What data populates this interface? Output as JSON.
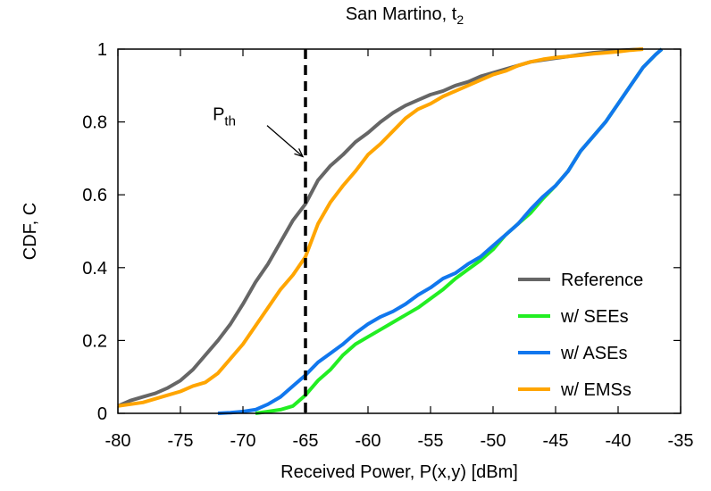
{
  "chart_data": {
    "type": "line",
    "title": "San Martino, t",
    "title_subscript": "2",
    "xlabel": "Received Power, P(x,y) [dBm]",
    "ylabel": "CDF, C",
    "xlim": [
      -80,
      -35
    ],
    "ylim": [
      0,
      1
    ],
    "x_ticks": [
      "-80",
      "-75",
      "-70",
      "-65",
      "-60",
      "-55",
      "-50",
      "-45",
      "-40",
      "-35"
    ],
    "y_ticks": [
      "0",
      "0.2",
      "0.4",
      "0.6",
      "0.8",
      "1"
    ],
    "grid": false,
    "legend_position": "bottom-right",
    "threshold": {
      "label": "P",
      "label_subscript": "th",
      "x": -65,
      "color": "#000000",
      "arrow_from": {
        "x": -68.5,
        "y": 0.8
      },
      "label_at": {
        "x": -71.5,
        "y": 0.8
      }
    },
    "series": [
      {
        "name": "Reference",
        "color": "#666666",
        "points": [
          [
            -80,
            0.02
          ],
          [
            -79,
            0.035
          ],
          [
            -78,
            0.045
          ],
          [
            -77,
            0.055
          ],
          [
            -76,
            0.07
          ],
          [
            -75,
            0.09
          ],
          [
            -74,
            0.12
          ],
          [
            -73,
            0.16
          ],
          [
            -72,
            0.2
          ],
          [
            -71,
            0.245
          ],
          [
            -70,
            0.3
          ],
          [
            -69,
            0.36
          ],
          [
            -68,
            0.41
          ],
          [
            -67,
            0.47
          ],
          [
            -66,
            0.53
          ],
          [
            -65,
            0.575
          ],
          [
            -64,
            0.64
          ],
          [
            -63,
            0.68
          ],
          [
            -62,
            0.71
          ],
          [
            -61,
            0.745
          ],
          [
            -60,
            0.77
          ],
          [
            -59,
            0.8
          ],
          [
            -58,
            0.825
          ],
          [
            -57,
            0.845
          ],
          [
            -56,
            0.86
          ],
          [
            -55,
            0.875
          ],
          [
            -54,
            0.885
          ],
          [
            -53,
            0.9
          ],
          [
            -52,
            0.91
          ],
          [
            -51,
            0.925
          ],
          [
            -50,
            0.935
          ],
          [
            -49,
            0.945
          ],
          [
            -48,
            0.955
          ],
          [
            -47,
            0.965
          ],
          [
            -46,
            0.97
          ],
          [
            -45,
            0.975
          ],
          [
            -44,
            0.98
          ],
          [
            -43,
            0.985
          ],
          [
            -42,
            0.99
          ],
          [
            -41,
            0.993
          ],
          [
            -40,
            0.996
          ],
          [
            -39,
            0.998
          ],
          [
            -38,
            1.0
          ]
        ]
      },
      {
        "name": "w/ SEEs",
        "color": "#22ee22",
        "points": [
          [
            -69,
            0.0
          ],
          [
            -68,
            0.005
          ],
          [
            -67,
            0.01
          ],
          [
            -66,
            0.02
          ],
          [
            -65.5,
            0.035
          ],
          [
            -65,
            0.05
          ],
          [
            -64.5,
            0.07
          ],
          [
            -64,
            0.09
          ],
          [
            -63,
            0.12
          ],
          [
            -62,
            0.16
          ],
          [
            -61,
            0.19
          ],
          [
            -60,
            0.21
          ],
          [
            -59,
            0.23
          ],
          [
            -58,
            0.25
          ],
          [
            -57,
            0.27
          ],
          [
            -56,
            0.29
          ],
          [
            -55,
            0.315
          ],
          [
            -54,
            0.34
          ],
          [
            -53,
            0.37
          ],
          [
            -52,
            0.395
          ],
          [
            -51,
            0.42
          ],
          [
            -50,
            0.45
          ],
          [
            -49,
            0.49
          ],
          [
            -48,
            0.52
          ],
          [
            -47,
            0.55
          ],
          [
            -46,
            0.59
          ],
          [
            -45,
            0.625
          ],
          [
            -44,
            0.665
          ],
          [
            -43,
            0.72
          ],
          [
            -42,
            0.76
          ],
          [
            -41,
            0.8
          ],
          [
            -40,
            0.85
          ],
          [
            -39,
            0.9
          ],
          [
            -38,
            0.95
          ],
          [
            -37,
            0.985
          ],
          [
            -36.5,
            1.0
          ]
        ]
      },
      {
        "name": "w/ ASEs",
        "color": "#1177ee",
        "points": [
          [
            -72,
            0.0
          ],
          [
            -71,
            0.002
          ],
          [
            -70,
            0.005
          ],
          [
            -69,
            0.01
          ],
          [
            -68,
            0.025
          ],
          [
            -67,
            0.045
          ],
          [
            -66,
            0.075
          ],
          [
            -65,
            0.105
          ],
          [
            -64,
            0.14
          ],
          [
            -63,
            0.165
          ],
          [
            -62,
            0.19
          ],
          [
            -61,
            0.22
          ],
          [
            -60,
            0.245
          ],
          [
            -59,
            0.265
          ],
          [
            -58,
            0.28
          ],
          [
            -57,
            0.3
          ],
          [
            -56,
            0.325
          ],
          [
            -55,
            0.345
          ],
          [
            -54,
            0.37
          ],
          [
            -53,
            0.385
          ],
          [
            -52,
            0.41
          ],
          [
            -51,
            0.43
          ],
          [
            -50,
            0.46
          ],
          [
            -49,
            0.49
          ],
          [
            -48,
            0.52
          ],
          [
            -47,
            0.56
          ],
          [
            -46,
            0.595
          ],
          [
            -45,
            0.625
          ],
          [
            -44,
            0.665
          ],
          [
            -43,
            0.72
          ],
          [
            -42,
            0.76
          ],
          [
            -41,
            0.8
          ],
          [
            -40,
            0.85
          ],
          [
            -39,
            0.9
          ],
          [
            -38,
            0.95
          ],
          [
            -37,
            0.985
          ],
          [
            -36.5,
            1.0
          ]
        ]
      },
      {
        "name": "w/ EMSs",
        "color": "#ffa500",
        "points": [
          [
            -80,
            0.02
          ],
          [
            -79,
            0.025
          ],
          [
            -78,
            0.03
          ],
          [
            -77,
            0.04
          ],
          [
            -76,
            0.05
          ],
          [
            -75,
            0.06
          ],
          [
            -74,
            0.075
          ],
          [
            -73,
            0.085
          ],
          [
            -72,
            0.11
          ],
          [
            -71,
            0.15
          ],
          [
            -70,
            0.19
          ],
          [
            -69,
            0.24
          ],
          [
            -68,
            0.29
          ],
          [
            -67,
            0.34
          ],
          [
            -66,
            0.38
          ],
          [
            -65,
            0.43
          ],
          [
            -64,
            0.52
          ],
          [
            -63,
            0.58
          ],
          [
            -62,
            0.625
          ],
          [
            -61,
            0.665
          ],
          [
            -60,
            0.71
          ],
          [
            -59,
            0.74
          ],
          [
            -58,
            0.775
          ],
          [
            -57,
            0.81
          ],
          [
            -56,
            0.835
          ],
          [
            -55,
            0.85
          ],
          [
            -54,
            0.87
          ],
          [
            -53,
            0.885
          ],
          [
            -52,
            0.9
          ],
          [
            -51,
            0.915
          ],
          [
            -50,
            0.93
          ],
          [
            -49,
            0.94
          ],
          [
            -48,
            0.955
          ],
          [
            -47,
            0.965
          ],
          [
            -46,
            0.972
          ],
          [
            -45,
            0.977
          ],
          [
            -44,
            0.98
          ],
          [
            -43,
            0.983
          ],
          [
            -42,
            0.987
          ],
          [
            -41,
            0.99
          ],
          [
            -40,
            0.993
          ],
          [
            -39,
            0.997
          ],
          [
            -38,
            1.0
          ]
        ]
      }
    ]
  }
}
